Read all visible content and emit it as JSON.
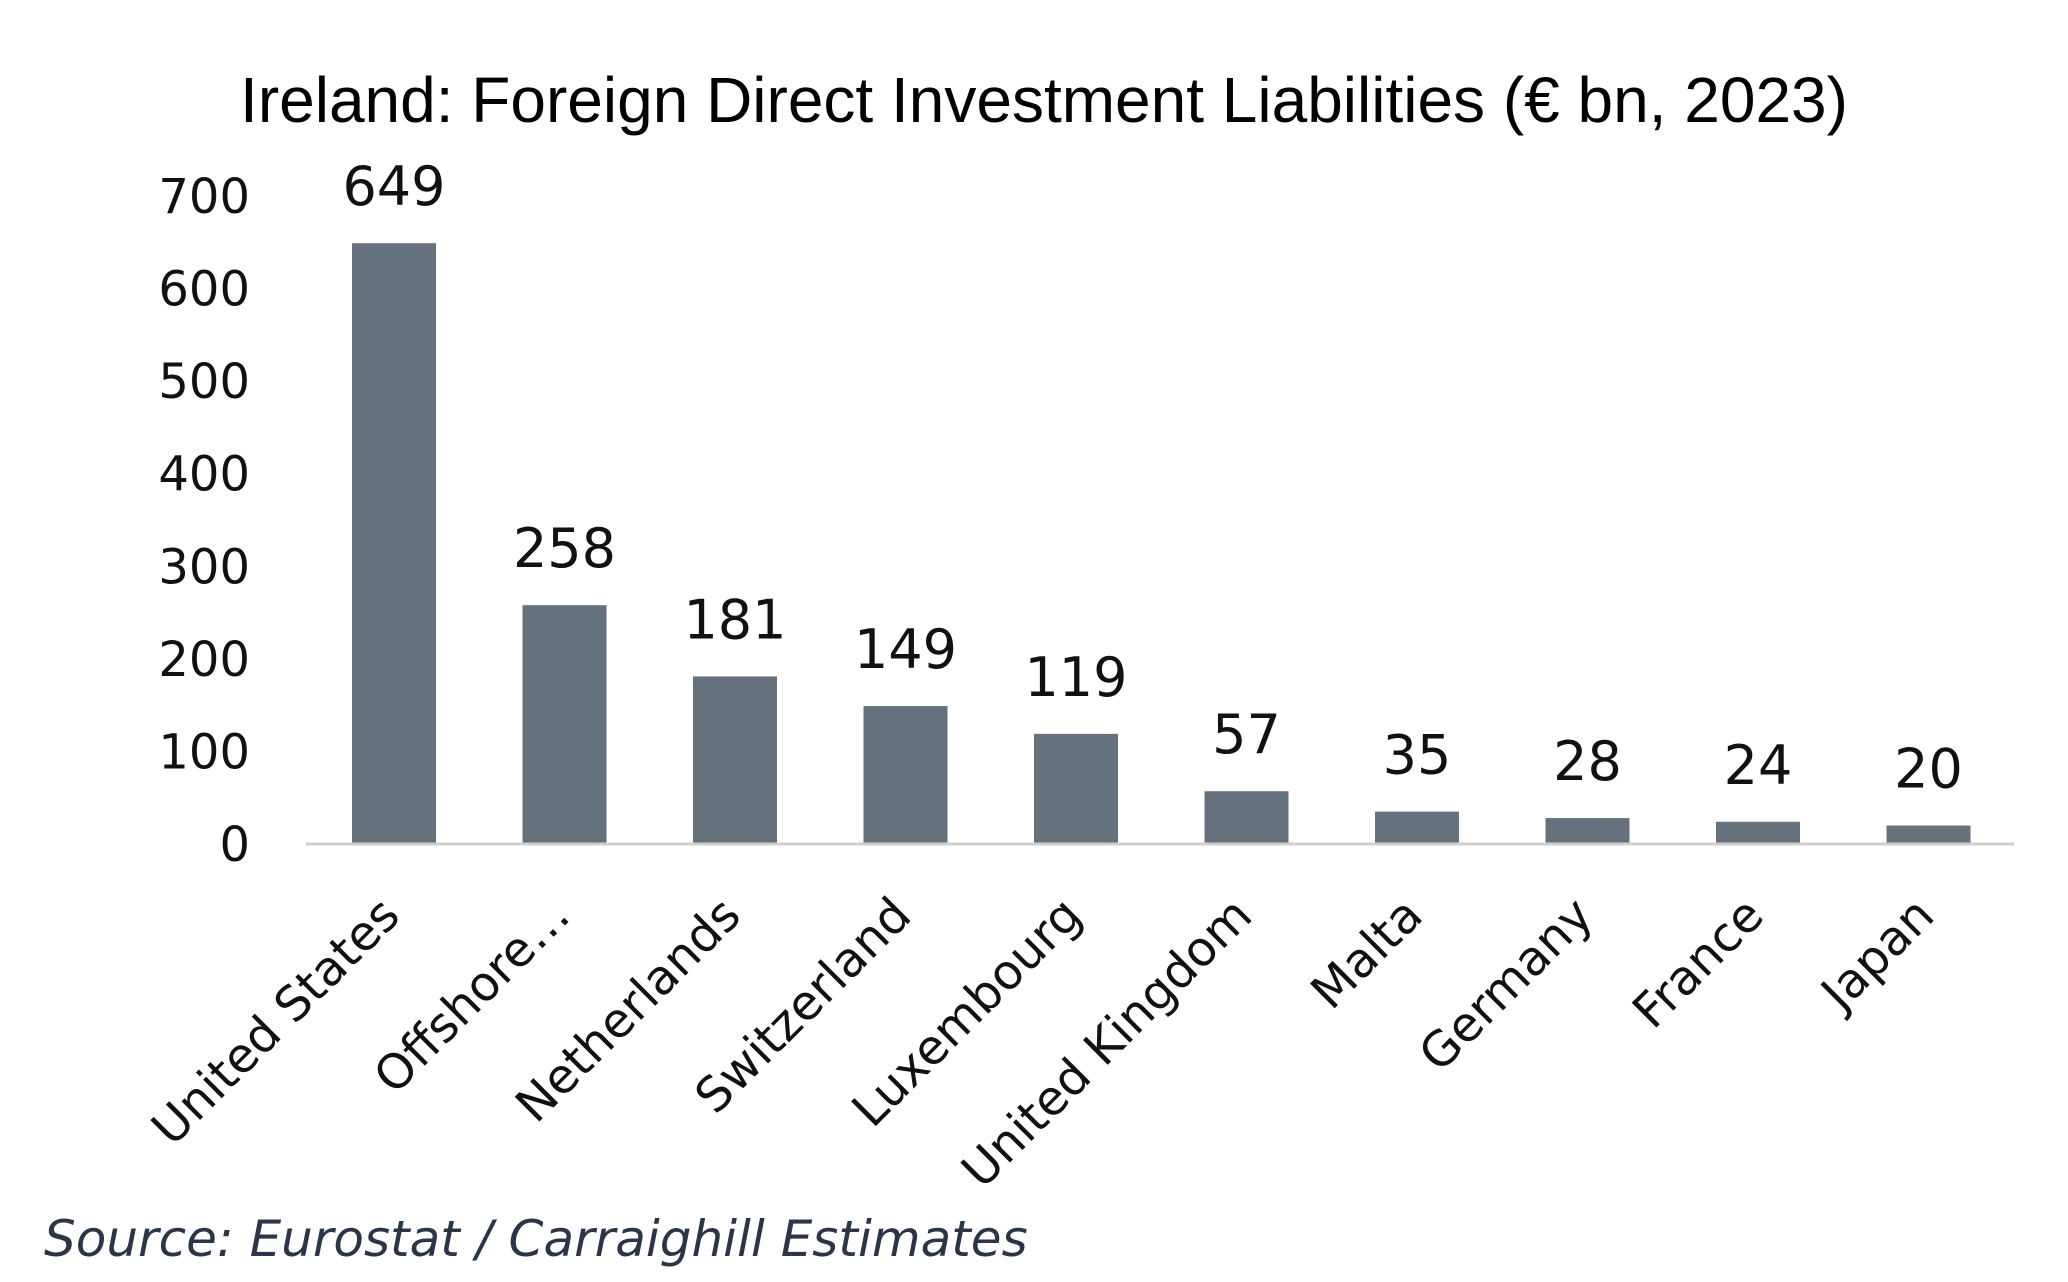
{
  "chart_data": {
    "type": "bar",
    "title": "Ireland: Foreign Direct Investment Liabilities (€ bn, 2023)",
    "xlabel": "",
    "ylabel": "",
    "categories": [
      "United States",
      "Offshore…",
      "Netherlands",
      "Switzerland",
      "Luxembourg",
      "United Kingdom",
      "Malta",
      "Germany",
      "France",
      "Japan"
    ],
    "values": [
      649,
      258,
      181,
      149,
      119,
      57,
      35,
      28,
      24,
      20
    ],
    "data_labels": [
      "649",
      "258",
      "181",
      "149",
      "119",
      "57",
      "35",
      "28",
      "24",
      "20"
    ],
    "ylim": [
      0,
      700
    ],
    "yticks": [
      0,
      100,
      200,
      300,
      400,
      500,
      600,
      700
    ],
    "grid": false,
    "legend": "none",
    "bar_color": "#66717e",
    "axis_color": "#d0d0d0"
  },
  "footer": {
    "source": "Source: Eurostat / Carraighill Estimates"
  }
}
